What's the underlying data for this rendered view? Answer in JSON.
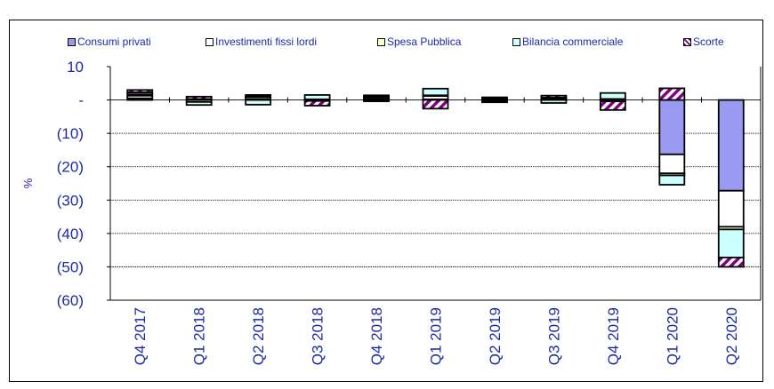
{
  "title": "",
  "chart_data": {
    "type": "bar",
    "stacked": true,
    "title": "",
    "xlabel": "",
    "ylabel": "%",
    "ylim": [
      -60,
      10
    ],
    "yticks": [
      10,
      0,
      -10,
      -20,
      -30,
      -40,
      -50,
      -60
    ],
    "ytick_labels": [
      "10",
      "-",
      "(10)",
      "(20)",
      "(30)",
      "(40)",
      "(50)",
      "(60)"
    ],
    "grid": true,
    "legend": "top",
    "categories": [
      "Q4 2017",
      "Q1 2018",
      "Q2 2018",
      "Q3 2018",
      "Q4 2018",
      "Q1 2019",
      "Q2 2019",
      "Q3 2019",
      "Q4 2019",
      "Q1 2020",
      "Q2 2020"
    ],
    "series": [
      {
        "name": "Consumi privati",
        "color": "#9a9af2",
        "pattern": "solid",
        "values": [
          0.5,
          0.1,
          0.2,
          0.0,
          0.3,
          0.2,
          0.2,
          0.2,
          0.1,
          -16.3,
          -27.2
        ]
      },
      {
        "name": "Investimenti fissi lordi",
        "color": "#ffffff",
        "pattern": "solid",
        "values": [
          0.8,
          -0.6,
          0.6,
          -0.3,
          0.5,
          1.0,
          0.3,
          0.3,
          -0.4,
          -5.7,
          -10.8
        ]
      },
      {
        "name": "Spesa Pubblica",
        "color": "#ffffcc",
        "pattern": "solid",
        "values": [
          0.4,
          0.2,
          0.3,
          0.2,
          0.2,
          0.2,
          0.3,
          0.2,
          0.2,
          -0.6,
          -0.8
        ]
      },
      {
        "name": "Bilancia commerciale",
        "color": "#ccffff",
        "pattern": "solid",
        "values": [
          0.6,
          -0.9,
          -1.4,
          1.3,
          -0.4,
          2.0,
          -0.4,
          -0.9,
          1.8,
          -2.8,
          -8.4
        ]
      },
      {
        "name": "Scorte",
        "color": "#800080",
        "pattern": "hatch",
        "values": [
          0.7,
          0.7,
          0.4,
          -1.4,
          0.4,
          -2.6,
          -0.3,
          0.6,
          -2.6,
          3.5,
          -2.8
        ]
      }
    ]
  }
}
